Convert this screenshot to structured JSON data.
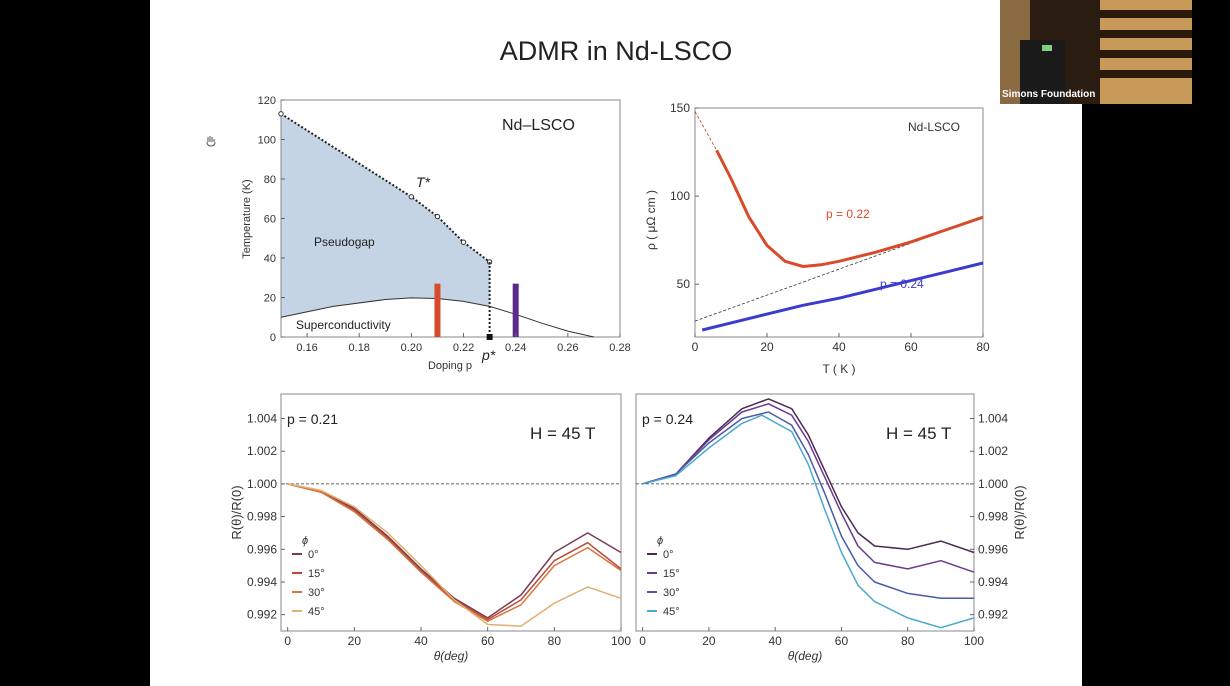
{
  "slide": {
    "title": "ADMR in Nd-LSCO"
  },
  "camera": {
    "label": "Simons Foundation"
  },
  "chart_data": [
    {
      "type": "area",
      "xlabel": "Doping p",
      "ylabel": "Temperature (K)",
      "xlim": [
        0.15,
        0.28
      ],
      "ylim": [
        0,
        120
      ],
      "xticks": [
        "0.16",
        "0.18",
        "0.20",
        "0.22",
        "0.24",
        "0.26",
        "0.28"
      ],
      "yticks": [
        "0",
        "20",
        "40",
        "60",
        "80",
        "100",
        "120"
      ],
      "annotations": {
        "material": "Nd–LSCO",
        "tstar": "T*",
        "pstar": "p*",
        "pseudogap": "Pseudogap",
        "sc": "Superconductivity"
      },
      "tstar_points": [
        {
          "x": 0.15,
          "y": 113
        },
        {
          "x": 0.2,
          "y": 71
        },
        {
          "x": 0.21,
          "y": 61
        },
        {
          "x": 0.22,
          "y": 48
        },
        {
          "x": 0.23,
          "y": 38
        }
      ],
      "sc_dome": [
        {
          "x": 0.15,
          "y": 10
        },
        {
          "x": 0.17,
          "y": 15.5
        },
        {
          "x": 0.19,
          "y": 19
        },
        {
          "x": 0.2,
          "y": 19.8
        },
        {
          "x": 0.21,
          "y": 19.5
        },
        {
          "x": 0.22,
          "y": 18
        },
        {
          "x": 0.23,
          "y": 15.5
        },
        {
          "x": 0.24,
          "y": 11.5
        },
        {
          "x": 0.25,
          "y": 7
        },
        {
          "x": 0.26,
          "y": 3
        },
        {
          "x": 0.27,
          "y": 0
        }
      ],
      "markers": [
        {
          "x": 0.21,
          "ymax": 27,
          "color": "#d94a2a"
        },
        {
          "x": 0.24,
          "ymax": 27,
          "color": "#5b2a8a"
        }
      ],
      "pstar": 0.23
    },
    {
      "type": "line",
      "xlabel": "T ( K )",
      "ylabel": "ρ  ( μΩ cm )",
      "xlim": [
        0,
        80
      ],
      "ylim": [
        20,
        150
      ],
      "xticks": [
        "0",
        "20",
        "40",
        "60",
        "80"
      ],
      "yticks": [
        "50",
        "100",
        "150"
      ],
      "annotation": "Nd-LSCO",
      "series": [
        {
          "name": "p = 0.22",
          "color": "#d94a2a",
          "x": [
            6,
            10,
            15,
            20,
            25,
            30,
            35,
            40,
            50,
            60,
            70,
            80
          ],
          "y": [
            126,
            110,
            88,
            72,
            63,
            60,
            61,
            63,
            68,
            74,
            81,
            88
          ]
        },
        {
          "name": "p = 0.24",
          "color": "#3b3bcf",
          "x": [
            2,
            10,
            20,
            30,
            40,
            50,
            60,
            70,
            80
          ],
          "y": [
            24,
            28,
            33,
            38,
            42,
            47,
            52,
            57,
            62
          ]
        }
      ],
      "extrapolations": [
        {
          "color": "#c0392b",
          "x": [
            0,
            6
          ],
          "y": [
            148,
            126
          ]
        },
        {
          "color": "#333333",
          "x": [
            0,
            80
          ],
          "y": [
            29,
            88
          ]
        }
      ]
    },
    {
      "type": "line",
      "xlabel": "θ(deg)",
      "ylabel": "R(θ)/R(0)",
      "xlim": [
        -2,
        100
      ],
      "ylim": [
        0.991,
        1.0055
      ],
      "xticks": [
        "0",
        "20",
        "40",
        "60",
        "80",
        "100"
      ],
      "yticks": [
        "0.992",
        "0.994",
        "0.996",
        "0.998",
        "1.000",
        "1.002",
        "1.004"
      ],
      "annotations": {
        "doping": "p = 0.21",
        "field": "H = 45 T",
        "legend_title": "ϕ"
      },
      "series": [
        {
          "name": "0°",
          "color": "#7a3b52",
          "x": [
            0,
            10,
            20,
            30,
            40,
            50,
            60,
            70,
            80,
            90,
            100
          ],
          "y": [
            1.0,
            0.9995,
            0.9985,
            0.9968,
            0.9948,
            0.993,
            0.9918,
            0.9932,
            0.9958,
            0.997,
            0.9958
          ]
        },
        {
          "name": "15°",
          "color": "#b84a3a",
          "x": [
            0,
            10,
            20,
            30,
            40,
            50,
            60,
            70,
            80,
            90,
            100
          ],
          "y": [
            1.0,
            0.9995,
            0.9984,
            0.9967,
            0.9947,
            0.9929,
            0.9917,
            0.9929,
            0.9953,
            0.9964,
            0.9948
          ]
        },
        {
          "name": "30°",
          "color": "#d9743a",
          "x": [
            0,
            10,
            20,
            30,
            40,
            50,
            60,
            70,
            80,
            90,
            100
          ],
          "y": [
            1.0,
            0.9995,
            0.9983,
            0.9966,
            0.9946,
            0.9928,
            0.9916,
            0.9926,
            0.995,
            0.9961,
            0.9947
          ]
        },
        {
          "name": "45°",
          "color": "#e0b070",
          "x": [
            0,
            10,
            20,
            30,
            40,
            50,
            60,
            70,
            80,
            90,
            100
          ],
          "y": [
            1.0,
            0.9996,
            0.9986,
            0.997,
            0.995,
            0.9929,
            0.9914,
            0.9913,
            0.9927,
            0.9937,
            0.993
          ]
        }
      ]
    },
    {
      "type": "line",
      "xlabel": "θ(deg)",
      "ylabel": "R(θ)/R(0)",
      "xlim": [
        -2,
        100
      ],
      "ylim": [
        0.991,
        1.0055
      ],
      "xticks": [
        "0",
        "20",
        "40",
        "60",
        "80",
        "100"
      ],
      "yticks": [
        "0.992",
        "0.994",
        "0.996",
        "0.998",
        "1.000",
        "1.002",
        "1.004"
      ],
      "annotations": {
        "doping": "p = 0.24",
        "field": "H = 45 T",
        "legend_title": "ϕ"
      },
      "series": [
        {
          "name": "0°",
          "color": "#4a2a55",
          "x": [
            0,
            10,
            20,
            30,
            38,
            45,
            50,
            55,
            60,
            65,
            70,
            80,
            90,
            100
          ],
          "y": [
            1.0,
            1.0006,
            1.0028,
            1.0046,
            1.0052,
            1.0046,
            1.003,
            1.0008,
            0.9986,
            0.997,
            0.9962,
            0.996,
            0.9965,
            0.9958
          ]
        },
        {
          "name": "15°",
          "color": "#6a3a90",
          "x": [
            0,
            10,
            20,
            30,
            38,
            45,
            50,
            55,
            60,
            65,
            70,
            80,
            90,
            100
          ],
          "y": [
            1.0,
            1.0006,
            1.0027,
            1.0044,
            1.0049,
            1.0042,
            1.0026,
            1.0004,
            0.9982,
            0.9962,
            0.9952,
            0.9948,
            0.9953,
            0.9946
          ]
        },
        {
          "name": "30°",
          "color": "#4a5aa8",
          "x": [
            0,
            10,
            20,
            30,
            38,
            45,
            50,
            55,
            60,
            65,
            70,
            80,
            90,
            100
          ],
          "y": [
            1.0,
            1.0006,
            1.0025,
            1.004,
            1.0044,
            1.0036,
            1.0018,
            0.9994,
            0.9968,
            0.995,
            0.994,
            0.9933,
            0.993,
            0.993
          ]
        },
        {
          "name": "45°",
          "color": "#4aa8d0",
          "x": [
            0,
            10,
            20,
            30,
            36,
            45,
            50,
            55,
            60,
            65,
            70,
            80,
            90,
            100
          ],
          "y": [
            1.0,
            1.0005,
            1.0022,
            1.0037,
            1.0042,
            1.0032,
            1.0012,
            0.9984,
            0.9958,
            0.9938,
            0.9928,
            0.9918,
            0.9912,
            0.9918
          ]
        }
      ]
    }
  ]
}
